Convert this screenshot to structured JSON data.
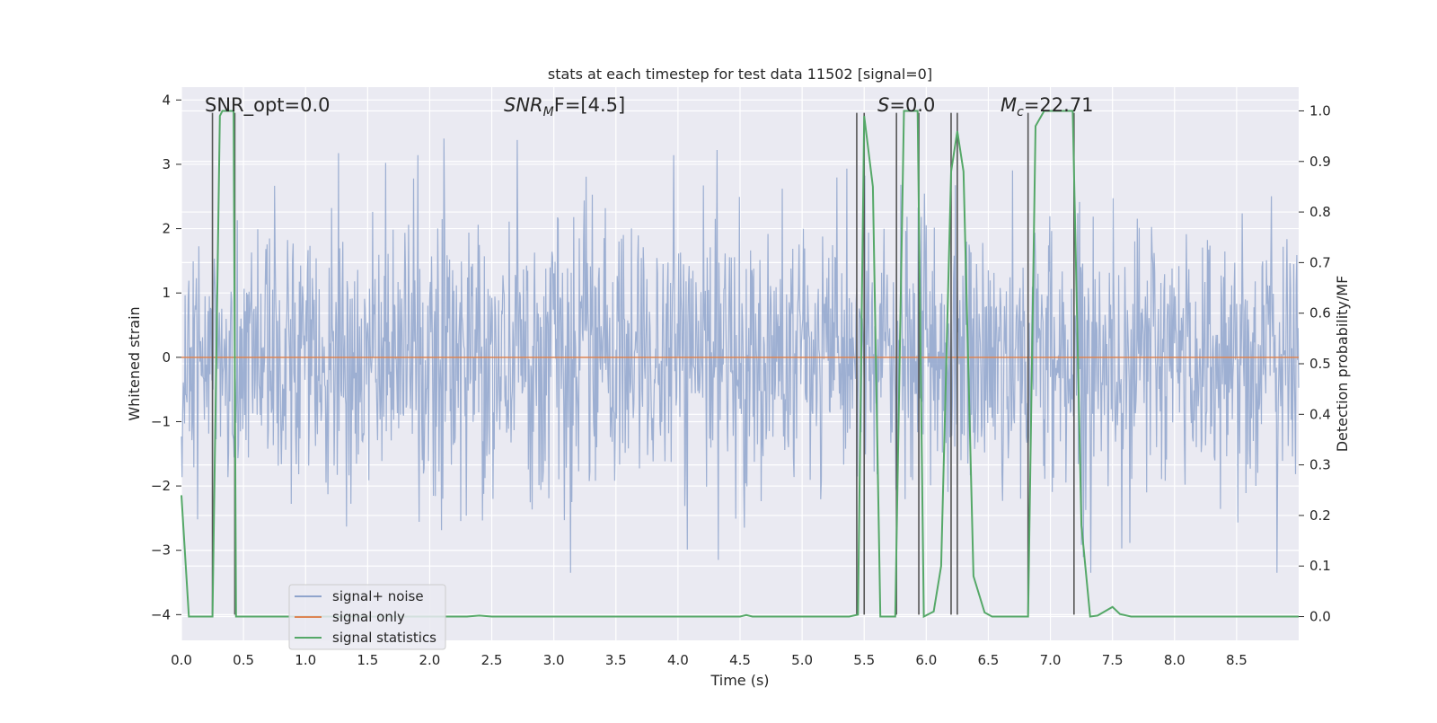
{
  "chart_data": {
    "type": "line",
    "title": "stats at each timestep for test data 11502 [signal=0]",
    "xlabel": "Time (s)",
    "ylabel_left": "Whitened strain",
    "ylabel_right": "Detection probability/MF",
    "xlim": [
      0.0,
      9.0
    ],
    "ylim_left": [
      -4.4,
      4.2
    ],
    "ylim_right": [
      -0.047,
      1.047
    ],
    "xticks": [
      "0.0",
      "0.5",
      "1.0",
      "1.5",
      "2.0",
      "2.5",
      "3.0",
      "3.5",
      "4.0",
      "4.5",
      "5.0",
      "5.5",
      "6.0",
      "6.5",
      "7.0",
      "7.5",
      "8.0",
      "8.5"
    ],
    "xtick_values": [
      0.0,
      0.5,
      1.0,
      1.5,
      2.0,
      2.5,
      3.0,
      3.5,
      4.0,
      4.5,
      5.0,
      5.5,
      6.0,
      6.5,
      7.0,
      7.5,
      8.0,
      8.5
    ],
    "yticks_left": [
      "−4",
      "−3",
      "−2",
      "−1",
      "0",
      "1",
      "2",
      "3",
      "4"
    ],
    "ytick_values_left": [
      -4,
      -3,
      -2,
      -1,
      0,
      1,
      2,
      3,
      4
    ],
    "yticks_right": [
      "0.0",
      "0.1",
      "0.2",
      "0.3",
      "0.4",
      "0.5",
      "0.6",
      "0.7",
      "0.8",
      "0.9",
      "1.0"
    ],
    "ytick_values_right": [
      0.0,
      0.1,
      0.2,
      0.3,
      0.4,
      0.5,
      0.6,
      0.7,
      0.8,
      0.9,
      1.0
    ],
    "grid": true,
    "annotations": {
      "snr_opt": "SNR_opt=0.0",
      "snr_mf_main": "SNR",
      "snr_mf_sub": "M",
      "snr_mf_rest": "F=[4.5]",
      "s_main": "S",
      "s_rest": "=0.0",
      "mc_main": "M",
      "mc_sub": "c",
      "mc_rest": "=22.71"
    },
    "series": [
      {
        "name": "signal+ noise",
        "axis": "left",
        "color": "#8fa4cc",
        "description_stats": {
          "typical_range": [
            -2.2,
            2.4
          ],
          "peak_max": 3.4,
          "peak_min": -3.35
        }
      },
      {
        "name": "signal only",
        "axis": "left",
        "color": "#dd8452",
        "x": [
          0.0,
          9.0
        ],
        "y": [
          0.0,
          0.0
        ]
      },
      {
        "name": "signal statistics",
        "axis": "right",
        "color": "#55a868",
        "x": [
          0.0,
          0.06,
          0.1,
          0.25,
          0.31,
          0.33,
          0.42,
          0.44,
          0.5,
          2.3,
          2.4,
          2.5,
          4.5,
          4.55,
          4.6,
          5.38,
          5.45,
          5.5,
          5.57,
          5.63,
          5.75,
          5.82,
          5.93,
          5.98,
          6.06,
          6.12,
          6.2,
          6.25,
          6.3,
          6.38,
          6.47,
          6.53,
          6.82,
          6.88,
          6.95,
          7.18,
          7.25,
          7.32,
          7.38,
          7.45,
          7.5,
          7.56,
          7.65,
          9.0
        ],
        "y": [
          0.24,
          0.0,
          0.0,
          0.0,
          0.99,
          1.0,
          1.0,
          0.0,
          0.0,
          0.0,
          0.002,
          0.0,
          0.0,
          0.003,
          0.0,
          0.0,
          0.004,
          0.99,
          0.85,
          0.0,
          0.0,
          1.0,
          1.0,
          0.0,
          0.01,
          0.1,
          0.88,
          0.96,
          0.88,
          0.08,
          0.008,
          0.0,
          0.0,
          0.97,
          1.0,
          1.0,
          0.18,
          0.0,
          0.002,
          0.012,
          0.019,
          0.005,
          0.0,
          0.0
        ]
      }
    ],
    "detection_markers": {
      "color": "#555555",
      "x": [
        0.25,
        0.43,
        5.44,
        5.5,
        5.76,
        5.94,
        6.2,
        6.25,
        6.82,
        7.19
      ],
      "y_range_left": [
        -4.0,
        3.8
      ]
    },
    "legend": {
      "placement": "lower-left"
    }
  }
}
